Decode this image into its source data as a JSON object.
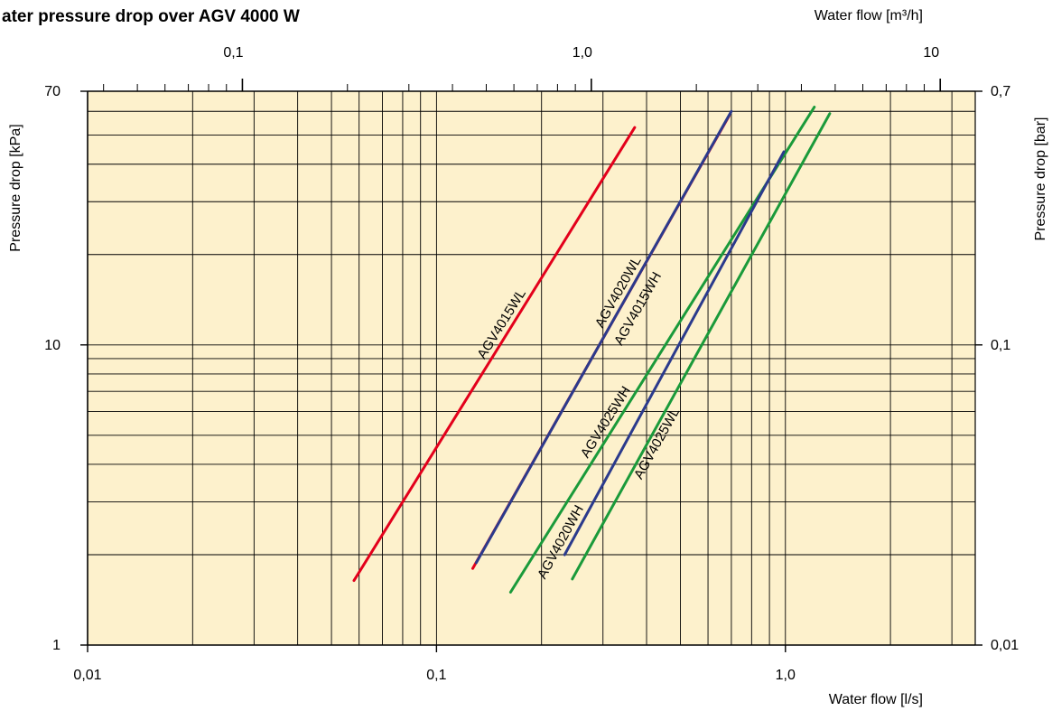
{
  "chart_data": {
    "type": "line",
    "title": "ater pressure drop over AGV 4000 W",
    "xlabel": "Water flow [l/s]",
    "x2label": "Water flow [m³/h]",
    "ylabel": "Pressure drop [kPa]",
    "y2label": "Pressure drop [bar]",
    "xscale": "log",
    "yscale": "log",
    "xlim": [
      0.01,
      3.5
    ],
    "ylim": [
      1,
      70
    ],
    "x2lim": [
      0.036,
      12.6
    ],
    "y2lim": [
      0.01,
      0.7
    ],
    "grid": true,
    "legend": "none",
    "x_ticks": [
      {
        "value": 0.01,
        "label": "0,01"
      },
      {
        "value": 0.1,
        "label": "0,1"
      },
      {
        "value": 1.0,
        "label": "1,0"
      }
    ],
    "x2_ticks": [
      {
        "value": 0.1,
        "label": "0,1"
      },
      {
        "value": 1.0,
        "label": "1,0"
      },
      {
        "value": 10,
        "label": "10"
      }
    ],
    "y_ticks": [
      {
        "value": 1,
        "label": "1"
      },
      {
        "value": 10,
        "label": "10"
      },
      {
        "value": 70,
        "label": "70"
      }
    ],
    "y2_ticks": [
      {
        "value": 0.01,
        "label": "0,01"
      },
      {
        "value": 0.1,
        "label": "0,1"
      },
      {
        "value": 0.7,
        "label": "0,7"
      }
    ],
    "series": [
      {
        "name": "AGV4015WL",
        "color": "#e3001b",
        "x": [
          0.058,
          0.37
        ],
        "y": [
          1.64,
          53
        ]
      },
      {
        "name": "AGV4020WL",
        "color": "#e3001b",
        "x": [
          0.127,
          0.69
        ],
        "y": [
          1.8,
          58
        ]
      },
      {
        "name": "AGV4015WH",
        "color": "#2b3a8c",
        "x": [
          0.13,
          0.7
        ],
        "y": [
          1.88,
          60
        ]
      },
      {
        "name": "AGV4025WH",
        "color": "#1a9a3a",
        "x": [
          0.163,
          1.21
        ],
        "y": [
          1.5,
          62
        ]
      },
      {
        "name": "AGV4020WH",
        "color": "#2b3a8c",
        "x": [
          0.233,
          0.99
        ],
        "y": [
          2.0,
          44
        ]
      },
      {
        "name": "AGV4025WL",
        "color": "#1a9a3a",
        "x": [
          0.245,
          1.34
        ],
        "y": [
          1.66,
          59
        ]
      }
    ]
  },
  "colors": {
    "background": "#fdf1cc",
    "grid": "#000000"
  }
}
